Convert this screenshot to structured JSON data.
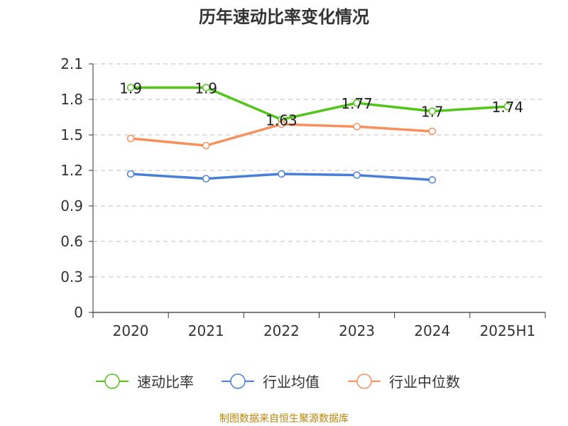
{
  "chart_data": {
    "type": "line",
    "title": "历年速动比率变化情况",
    "categories": [
      "2020",
      "2021",
      "2022",
      "2023",
      "2024",
      "2025H1"
    ],
    "y_ticks": [
      "0",
      "0.3",
      "0.6",
      "0.9",
      "1.2",
      "1.5",
      "1.8",
      "2.1"
    ],
    "ylim": [
      0,
      2.1
    ],
    "grid": true,
    "legend_position": "bottom",
    "series": [
      {
        "name": "速动比率",
        "color": "#52c41a",
        "values": [
          1.9,
          1.9,
          1.63,
          1.77,
          1.7,
          1.74
        ],
        "labels": [
          "1.9",
          "1.9",
          "1.63",
          "1.77",
          "1.7",
          "1.74"
        ]
      },
      {
        "name": "行业均值",
        "color": "#4a7fd8",
        "values": [
          1.17,
          1.13,
          1.17,
          1.16,
          1.12,
          null
        ]
      },
      {
        "name": "行业中位数",
        "color": "#f7905a",
        "values": [
          1.47,
          1.41,
          1.59,
          1.57,
          1.53,
          null
        ]
      }
    ]
  },
  "source": "制图数据来自恒生聚源数据库"
}
